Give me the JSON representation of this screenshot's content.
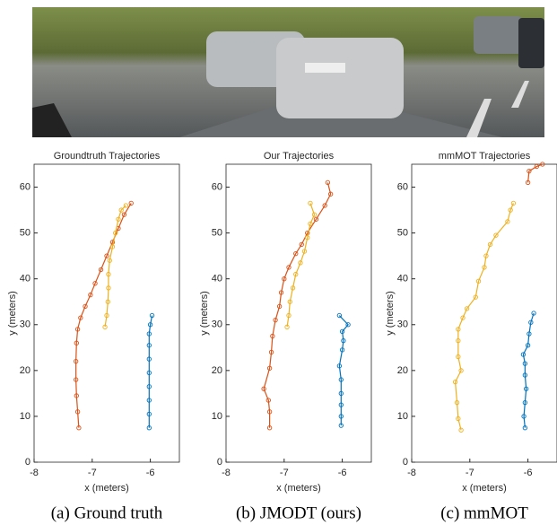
{
  "chart_data": [
    {
      "type": "line",
      "title": "Groundtruth Trajectories",
      "caption": "(a) Ground truth",
      "xlabel": "x (meters)",
      "ylabel": "y (meters)",
      "xlim": [
        -8,
        -5.5
      ],
      "ylim": [
        0,
        65
      ],
      "xticks": [
        -8,
        -7,
        -6
      ],
      "yticks": [
        0,
        10,
        20,
        30,
        40,
        50,
        60
      ],
      "series": [
        {
          "color": "#d95319",
          "x": [
            -7.23,
            -7.25,
            -7.27,
            -7.28,
            -7.28,
            -7.27,
            -7.25,
            -7.2,
            -7.12,
            -7.03,
            -6.95,
            -6.85,
            -6.75,
            -6.65,
            -6.55,
            -6.45,
            -6.33
          ],
          "values": [
            7.5,
            11,
            14.5,
            18,
            22,
            26,
            29,
            31.5,
            34,
            36.5,
            39,
            42,
            45,
            48,
            51,
            54,
            56.5
          ]
        },
        {
          "color": "#edb120",
          "x": [
            -6.78,
            -6.75,
            -6.73,
            -6.72,
            -6.72,
            -6.7,
            -6.65,
            -6.6,
            -6.55,
            -6.5,
            -6.42
          ],
          "values": [
            29.5,
            32,
            35,
            38,
            41,
            44,
            47,
            50,
            53,
            55,
            56
          ]
        },
        {
          "color": "#0072bd",
          "x": [
            -6.02,
            -6.02,
            -6.02,
            -6.02,
            -6.02,
            -6.02,
            -6.02,
            -6.02,
            -6.0,
            -5.97
          ],
          "values": [
            7.5,
            10.5,
            13.5,
            16.5,
            19.5,
            22.5,
            25.5,
            28,
            30,
            32
          ]
        }
      ]
    },
    {
      "type": "line",
      "title": "Our Trajectories",
      "caption": "(b) JMODT (ours)",
      "xlabel": "x (meters)",
      "ylabel": "y (meters)",
      "xlim": [
        -8,
        -5.5
      ],
      "ylim": [
        0,
        65
      ],
      "xticks": [
        -8,
        -7,
        -6
      ],
      "yticks": [
        0,
        10,
        20,
        30,
        40,
        50,
        60
      ],
      "series": [
        {
          "color": "#d95319",
          "x": [
            -7.25,
            -7.25,
            -7.27,
            -7.35,
            -7.25,
            -7.22,
            -7.2,
            -7.15,
            -7.08,
            -7.05,
            -7.0,
            -6.92,
            -6.8,
            -6.7,
            -6.6,
            -6.45,
            -6.3,
            -6.2,
            -6.25
          ],
          "values": [
            7.5,
            11,
            13.5,
            16,
            20.5,
            24,
            27.5,
            31,
            34,
            37,
            40,
            42.5,
            45.5,
            47.5,
            50,
            53,
            56,
            58.5,
            61
          ]
        },
        {
          "color": "#edb120",
          "x": [
            -6.95,
            -6.92,
            -6.9,
            -6.85,
            -6.8,
            -6.72,
            -6.65,
            -6.6,
            -6.55,
            -6.48,
            -6.55
          ],
          "values": [
            29.5,
            32,
            35,
            38,
            41,
            43.5,
            46,
            49,
            52,
            54,
            56.5
          ]
        },
        {
          "color": "#0072bd",
          "x": [
            -6.02,
            -6.02,
            -6.02,
            -6.02,
            -6.02,
            -6.05,
            -6.0,
            -5.98,
            -6.0,
            -5.9,
            -6.05
          ],
          "values": [
            8,
            10,
            12.5,
            15,
            18,
            21,
            24.5,
            26.5,
            28.5,
            30,
            32
          ]
        }
      ]
    },
    {
      "type": "line",
      "title": "mmMOT Trajectories",
      "caption": "(c) mmMOT",
      "xlabel": "x (meters)",
      "ylabel": "y (meters)",
      "xlim": [
        -8,
        -5.5
      ],
      "ylim": [
        0,
        65
      ],
      "xticks": [
        -8,
        -7,
        -6
      ],
      "yticks": [
        0,
        10,
        20,
        30,
        40,
        50,
        60
      ],
      "series": [
        {
          "color": "#d95319",
          "x": [
            -6.0,
            -5.98,
            -5.85,
            -5.75
          ],
          "values": [
            61,
            63.5,
            64.5,
            65
          ]
        },
        {
          "color": "#edb120",
          "x": [
            -7.15,
            -7.2,
            -7.22,
            -7.25,
            -7.15,
            -7.2,
            -7.2,
            -7.2,
            -7.12,
            -7.05,
            -6.9,
            -6.85,
            -6.75,
            -6.72,
            -6.65,
            -6.55,
            -6.35,
            -6.3,
            -6.25
          ],
          "values": [
            7,
            9.5,
            13,
            17.5,
            20,
            23,
            26.5,
            29,
            31.5,
            33.5,
            36,
            39.5,
            42.5,
            45,
            47.5,
            49.5,
            52.5,
            55,
            56.5
          ]
        },
        {
          "color": "#0072bd",
          "x": [
            -6.05,
            -6.07,
            -6.05,
            -6.03,
            -6.05,
            -6.05,
            -6.08,
            -6.0,
            -5.98,
            -5.95,
            -5.9
          ],
          "values": [
            7.5,
            10,
            13,
            16,
            19,
            21.5,
            23.5,
            25.5,
            28,
            30.5,
            32.5
          ]
        }
      ]
    }
  ]
}
